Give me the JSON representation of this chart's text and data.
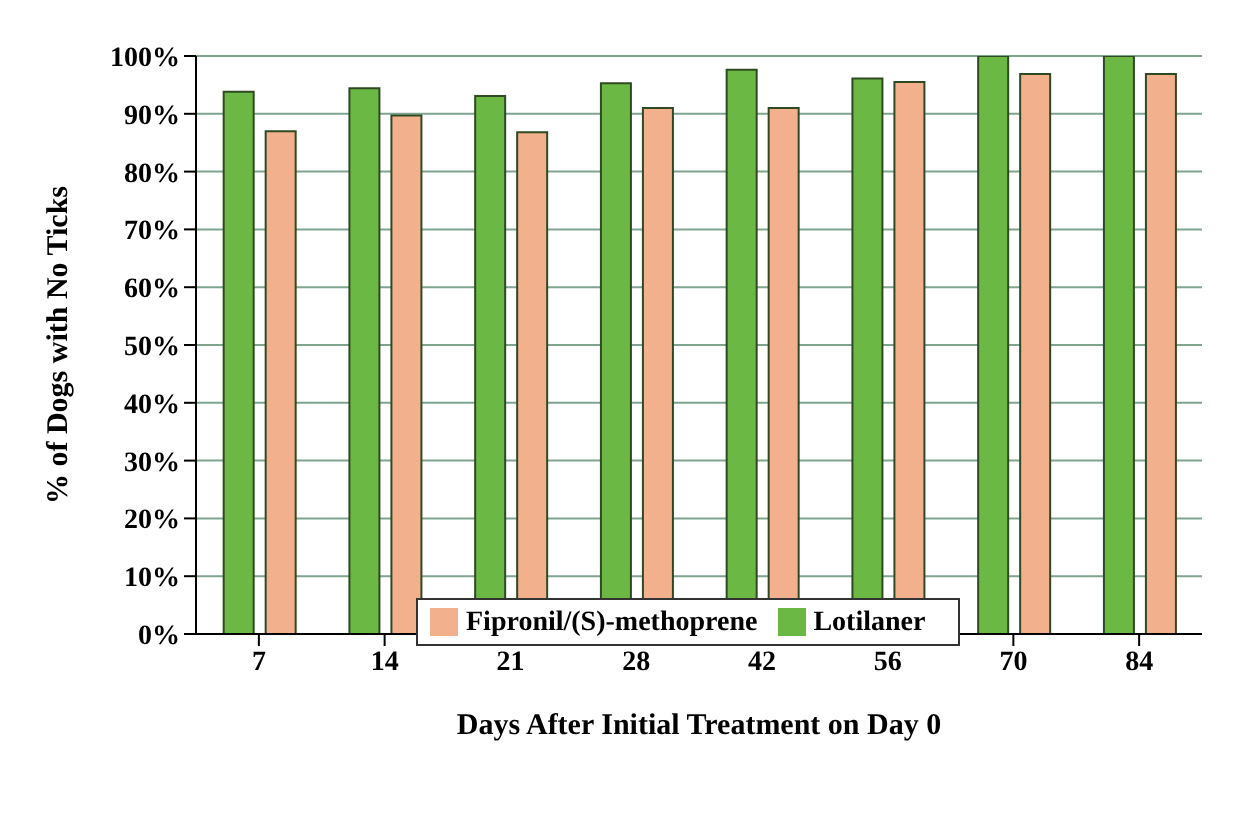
{
  "chart_data": {
    "type": "bar",
    "xlabel": "Days After Initial Treatment on Day 0",
    "ylabel": "% of Dogs with No Ticks",
    "categories": [
      "7",
      "14",
      "21",
      "28",
      "42",
      "56",
      "70",
      "84"
    ],
    "series": [
      {
        "name": "Lotilaner",
        "color": "#6cb844",
        "values": [
          93.8,
          94.4,
          93.1,
          95.3,
          97.6,
          96.1,
          100,
          100
        ]
      },
      {
        "name": "Fipronil/(S)-methoprene",
        "color": "#f2b08c",
        "values": [
          87.0,
          89.7,
          86.8,
          91.0,
          91.0,
          95.5,
          96.9,
          96.9
        ]
      }
    ],
    "ylim": [
      0,
      100
    ],
    "yticks": [
      {
        "value": 0,
        "label": "0%"
      },
      {
        "value": 10,
        "label": "10%"
      },
      {
        "value": 20,
        "label": "20%"
      },
      {
        "value": 30,
        "label": "30%"
      },
      {
        "value": 40,
        "label": "40%"
      },
      {
        "value": 50,
        "label": "50%"
      },
      {
        "value": 60,
        "label": "60%"
      },
      {
        "value": 70,
        "label": "70%"
      },
      {
        "value": 80,
        "label": "80%"
      },
      {
        "value": 90,
        "label": "90%"
      },
      {
        "value": 100,
        "label": "100%"
      }
    ],
    "grid": "y",
    "legend": "bottom"
  }
}
